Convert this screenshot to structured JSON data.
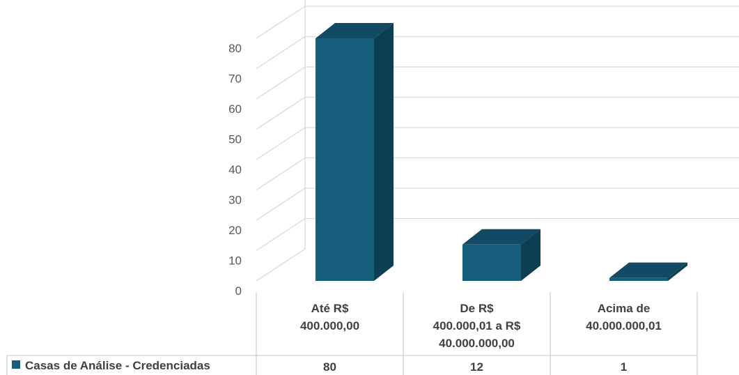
{
  "chart_data": {
    "type": "bar",
    "style": "3d-column-with-data-table",
    "categories": [
      [
        "Até R$",
        "400.000,00"
      ],
      [
        "De R$",
        "400.000,01 a R$",
        "40.000.000,00"
      ],
      [
        "Acima de",
        "40.000.000,01"
      ]
    ],
    "series": [
      {
        "name": "Casas de Análise - Credenciadas",
        "values": [
          80,
          12,
          1
        ]
      }
    ],
    "y_ticks": [
      0,
      10,
      20,
      30,
      40,
      50,
      60,
      70,
      80
    ],
    "ylim": [
      0,
      80
    ],
    "grid": true,
    "legend": "data-table-left",
    "colors": {
      "front": "#165e7c",
      "side": "#0d3f52",
      "top": "#114a62",
      "grid": "#d9d9d9",
      "table_line": "#d0d0d0"
    }
  }
}
